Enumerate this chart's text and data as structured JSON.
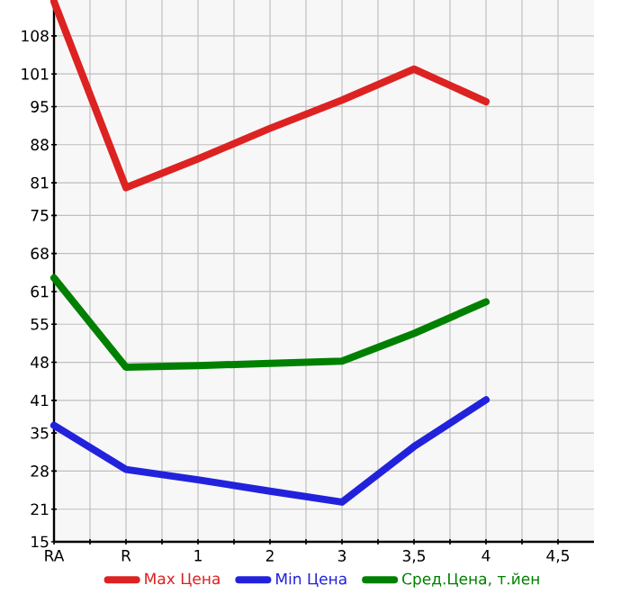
{
  "chart_data": {
    "type": "line",
    "categories": [
      "RA",
      "R",
      "1",
      "2",
      "3",
      "3,5",
      "4",
      "4,5"
    ],
    "series": [
      {
        "name": "Max Цена",
        "color": "#dd2222",
        "values": [
          114.3,
          80.1,
          85.4,
          91.0,
          96.2,
          101.9,
          95.9,
          null
        ]
      },
      {
        "name": "Min Цена",
        "color": "#2222dd",
        "values": [
          36.4,
          28.3,
          26.4,
          24.3,
          22.3,
          32.5,
          41.1,
          null
        ]
      },
      {
        "name": "Сред.Цена, т.йен",
        "color": "#008000",
        "values": [
          63.5,
          47.1,
          47.4,
          47.8,
          48.2,
          53.3,
          59.1,
          null
        ]
      }
    ],
    "ylim": [
      15,
      114.6
    ],
    "yticks": [
      15,
      21,
      28,
      35,
      41,
      48,
      55,
      61,
      68,
      75,
      81,
      88,
      95,
      101,
      108
    ],
    "grid": true,
    "legend": "bottom",
    "marker": "none",
    "line_style": "solid"
  }
}
